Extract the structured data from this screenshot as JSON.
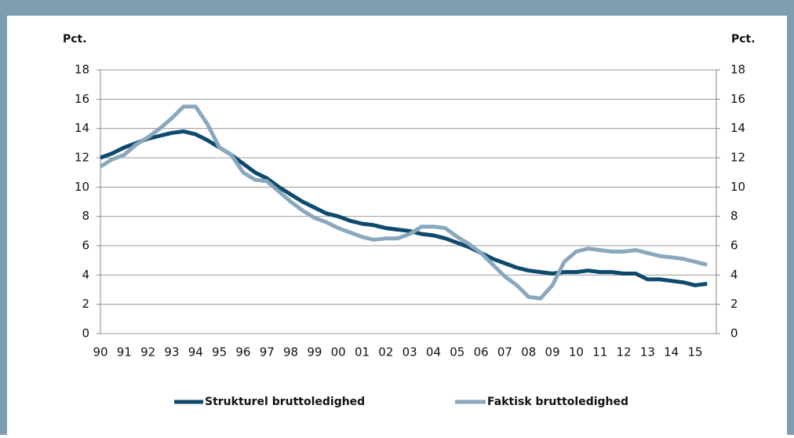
{
  "chart_data": {
    "type": "line",
    "y_label": "Pct.",
    "y2_label": "Pct.",
    "categories": [
      "90",
      null,
      "91",
      null,
      "92",
      null,
      "93",
      null,
      "94",
      null,
      "95",
      null,
      "96",
      null,
      "97",
      null,
      "98",
      null,
      "99",
      null,
      "00",
      null,
      "01",
      null,
      "02",
      null,
      "03",
      null,
      "04",
      null,
      "05",
      null,
      "06",
      null,
      "07",
      null,
      "08",
      null,
      "09",
      null,
      "10",
      null,
      "11",
      null,
      "12",
      null,
      "13",
      null,
      "14",
      null,
      "15",
      null
    ],
    "series": [
      {
        "name": "Strukturel bruttoledighed",
        "color": "#0d4a6e",
        "values": [
          12.0,
          12.3,
          12.7,
          13.0,
          13.3,
          13.5,
          13.7,
          13.8,
          13.6,
          13.2,
          12.7,
          12.2,
          11.6,
          11.0,
          10.6,
          10.0,
          9.5,
          9.0,
          8.6,
          8.2,
          8.0,
          7.7,
          7.5,
          7.4,
          7.2,
          7.1,
          7.0,
          6.8,
          6.7,
          6.5,
          6.2,
          5.9,
          5.5,
          5.1,
          4.8,
          4.5,
          4.3,
          4.2,
          4.1,
          4.2,
          4.2,
          4.3,
          4.2,
          4.2,
          4.1,
          4.1,
          3.7,
          3.7,
          3.6,
          3.5,
          3.3,
          3.4
        ]
      },
      {
        "name": "Faktisk bruttoledighed",
        "color": "#8aa8bd",
        "values": [
          11.4,
          11.9,
          12.2,
          12.9,
          13.4,
          14.0,
          14.7,
          15.5,
          15.5,
          14.3,
          12.7,
          12.2,
          11.0,
          10.5,
          10.4,
          9.7,
          9.0,
          8.4,
          7.9,
          7.6,
          7.2,
          6.9,
          6.6,
          6.4,
          6.5,
          6.5,
          6.8,
          7.3,
          7.3,
          7.2,
          6.6,
          6.1,
          5.5,
          4.7,
          3.9,
          3.3,
          2.5,
          2.4,
          3.3,
          4.9,
          5.6,
          5.8,
          5.7,
          5.6,
          5.6,
          5.7,
          5.5,
          5.3,
          5.2,
          5.1,
          4.9,
          4.7
        ]
      }
    ],
    "ylim": [
      0,
      18
    ],
    "yticks": [
      0,
      2,
      4,
      6,
      8,
      10,
      12,
      14,
      16,
      18
    ],
    "y2lim": [
      0,
      18
    ],
    "y2ticks": [
      0,
      2,
      4,
      6,
      8,
      10,
      12,
      14,
      16,
      18
    ],
    "grid": true,
    "legend": "bottom"
  }
}
